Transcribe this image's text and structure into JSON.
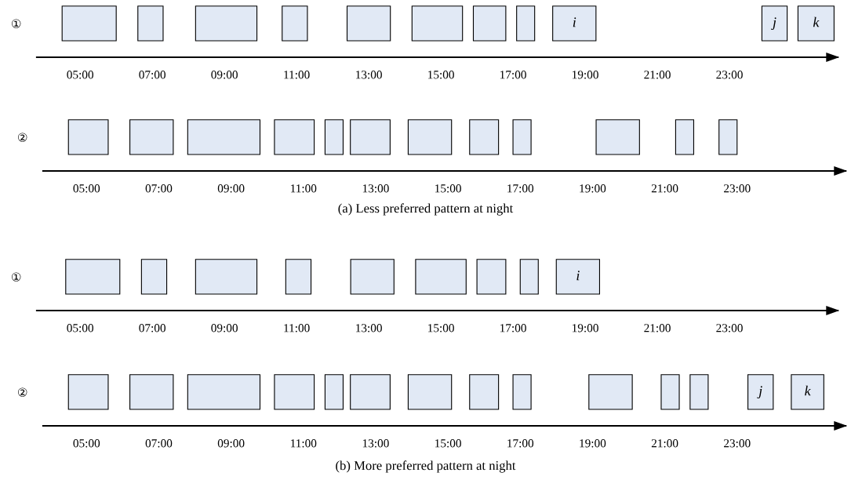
{
  "chart_data": [
    {
      "type": "bar",
      "orientation": "horizontal",
      "categories": [
        "①"
      ],
      "color": "#e1e9f5",
      "xlim": [
        3.8,
        26.0
      ],
      "xticks": [
        {
          "value": 5,
          "label": "05:00"
        },
        {
          "value": 7,
          "label": "07:00"
        },
        {
          "value": 9,
          "label": "09:00"
        },
        {
          "value": 11,
          "label": "11:00"
        },
        {
          "value": 13,
          "label": "13:00"
        },
        {
          "value": 15,
          "label": "15:00"
        },
        {
          "value": 17,
          "label": "17:00"
        },
        {
          "value": 19,
          "label": "19:00"
        },
        {
          "value": 21,
          "label": "21:00"
        },
        {
          "value": 23,
          "label": "23:00"
        }
      ],
      "series": [
        {
          "base": [
            4.5
          ],
          "values": [
            1.5
          ]
        },
        {
          "base": [
            6.6
          ],
          "values": [
            0.7
          ]
        },
        {
          "base": [
            8.2
          ],
          "values": [
            1.7
          ]
        },
        {
          "base": [
            10.6
          ],
          "values": [
            0.7
          ]
        },
        {
          "base": [
            12.4
          ],
          "values": [
            1.2
          ]
        },
        {
          "base": [
            14.2
          ],
          "values": [
            1.4
          ]
        },
        {
          "base": [
            15.9
          ],
          "values": [
            0.9
          ]
        },
        {
          "base": [
            17.1
          ],
          "values": [
            0.5
          ]
        },
        {
          "base": [
            18.1
          ],
          "values": [
            1.2
          ],
          "value_labels": [
            "i"
          ]
        },
        {
          "base": [
            23.9
          ],
          "values": [
            0.7
          ],
          "value_labels": [
            "j"
          ]
        },
        {
          "base": [
            24.9
          ],
          "values": [
            1.0
          ],
          "value_labels": [
            "k"
          ]
        }
      ]
    },
    {
      "type": "bar",
      "orientation": "horizontal",
      "categories": [
        "②"
      ],
      "color": "#e1e9f5",
      "xlim": [
        3.8,
        26.0
      ],
      "xticks": [
        {
          "value": 5,
          "label": "05:00"
        },
        {
          "value": 7,
          "label": "07:00"
        },
        {
          "value": 9,
          "label": "09:00"
        },
        {
          "value": 11,
          "label": "11:00"
        },
        {
          "value": 13,
          "label": "13:00"
        },
        {
          "value": 15,
          "label": "15:00"
        },
        {
          "value": 17,
          "label": "17:00"
        },
        {
          "value": 19,
          "label": "19:00"
        },
        {
          "value": 21,
          "label": "21:00"
        },
        {
          "value": 23,
          "label": "23:00"
        }
      ],
      "series": [
        {
          "base": [
            4.5
          ],
          "values": [
            1.1
          ]
        },
        {
          "base": [
            6.2
          ],
          "values": [
            1.2
          ]
        },
        {
          "base": [
            7.8
          ],
          "values": [
            2.0
          ]
        },
        {
          "base": [
            10.2
          ],
          "values": [
            1.1
          ]
        },
        {
          "base": [
            11.6
          ],
          "values": [
            0.5
          ]
        },
        {
          "base": [
            12.3
          ],
          "values": [
            1.1
          ]
        },
        {
          "base": [
            13.9
          ],
          "values": [
            1.2
          ]
        },
        {
          "base": [
            15.6
          ],
          "values": [
            0.8
          ]
        },
        {
          "base": [
            16.8
          ],
          "values": [
            0.5
          ]
        },
        {
          "base": [
            19.1
          ],
          "values": [
            1.2
          ]
        },
        {
          "base": [
            21.3
          ],
          "values": [
            0.5
          ]
        },
        {
          "base": [
            22.5
          ],
          "values": [
            0.5
          ]
        }
      ],
      "annotations": [
        "(a) Less preferred pattern at night"
      ]
    },
    {
      "type": "bar",
      "orientation": "horizontal",
      "categories": [
        "①"
      ],
      "color": "#e1e9f5",
      "xlim": [
        3.8,
        26.0
      ],
      "xticks": [
        {
          "value": 5,
          "label": "05:00"
        },
        {
          "value": 7,
          "label": "07:00"
        },
        {
          "value": 9,
          "label": "09:00"
        },
        {
          "value": 11,
          "label": "11:00"
        },
        {
          "value": 13,
          "label": "13:00"
        },
        {
          "value": 15,
          "label": "15:00"
        },
        {
          "value": 17,
          "label": "17:00"
        },
        {
          "value": 19,
          "label": "19:00"
        },
        {
          "value": 21,
          "label": "21:00"
        },
        {
          "value": 23,
          "label": "23:00"
        }
      ],
      "series": [
        {
          "base": [
            4.6
          ],
          "values": [
            1.5
          ]
        },
        {
          "base": [
            6.7
          ],
          "values": [
            0.7
          ]
        },
        {
          "base": [
            8.2
          ],
          "values": [
            1.7
          ]
        },
        {
          "base": [
            10.7
          ],
          "values": [
            0.7
          ]
        },
        {
          "base": [
            12.5
          ],
          "values": [
            1.2
          ]
        },
        {
          "base": [
            14.3
          ],
          "values": [
            1.4
          ]
        },
        {
          "base": [
            16.0
          ],
          "values": [
            0.8
          ]
        },
        {
          "base": [
            17.2
          ],
          "values": [
            0.5
          ]
        },
        {
          "base": [
            18.2
          ],
          "values": [
            1.2
          ],
          "value_labels": [
            "i"
          ]
        }
      ]
    },
    {
      "type": "bar",
      "orientation": "horizontal",
      "categories": [
        "②"
      ],
      "color": "#e1e9f5",
      "xlim": [
        3.8,
        26.0
      ],
      "xticks": [
        {
          "value": 5,
          "label": "05:00"
        },
        {
          "value": 7,
          "label": "07:00"
        },
        {
          "value": 9,
          "label": "09:00"
        },
        {
          "value": 11,
          "label": "11:00"
        },
        {
          "value": 13,
          "label": "13:00"
        },
        {
          "value": 15,
          "label": "15:00"
        },
        {
          "value": 17,
          "label": "17:00"
        },
        {
          "value": 19,
          "label": "19:00"
        },
        {
          "value": 21,
          "label": "21:00"
        },
        {
          "value": 23,
          "label": "23:00"
        }
      ],
      "series": [
        {
          "base": [
            4.5
          ],
          "values": [
            1.1
          ]
        },
        {
          "base": [
            6.2
          ],
          "values": [
            1.2
          ]
        },
        {
          "base": [
            7.8
          ],
          "values": [
            2.0
          ]
        },
        {
          "base": [
            10.2
          ],
          "values": [
            1.1
          ]
        },
        {
          "base": [
            11.6
          ],
          "values": [
            0.5
          ]
        },
        {
          "base": [
            12.3
          ],
          "values": [
            1.1
          ]
        },
        {
          "base": [
            13.9
          ],
          "values": [
            1.2
          ]
        },
        {
          "base": [
            15.6
          ],
          "values": [
            0.8
          ]
        },
        {
          "base": [
            16.8
          ],
          "values": [
            0.5
          ]
        },
        {
          "base": [
            18.9
          ],
          "values": [
            1.2
          ]
        },
        {
          "base": [
            20.9
          ],
          "values": [
            0.5
          ]
        },
        {
          "base": [
            21.7
          ],
          "values": [
            0.5
          ]
        },
        {
          "base": [
            23.3
          ],
          "values": [
            0.7
          ],
          "value_labels": [
            "j"
          ]
        },
        {
          "base": [
            24.5
          ],
          "values": [
            0.9
          ],
          "value_labels": [
            "k"
          ]
        }
      ],
      "annotations": [
        "(b) More preferred pattern at night"
      ]
    }
  ]
}
